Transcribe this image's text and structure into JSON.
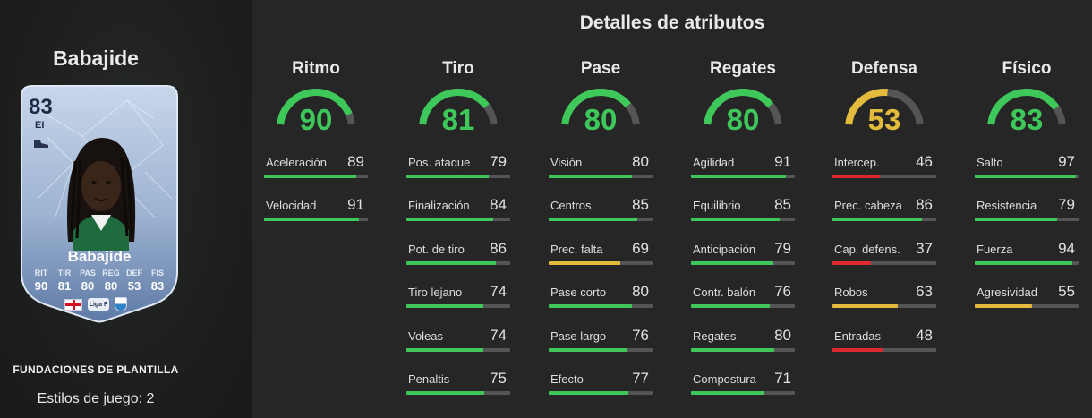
{
  "player": {
    "name": "Babajide",
    "card_name": "Babajide",
    "rating": "83",
    "position": "EI",
    "stat_labels": [
      "RIT",
      "TIR",
      "PAS",
      "REG",
      "DEF",
      "FÍS"
    ],
    "stat_values": [
      "90",
      "81",
      "80",
      "80",
      "53",
      "83"
    ],
    "league_logo_text": "Liga F",
    "icons": {
      "boot": "boot-icon",
      "flag": "england-flag-icon",
      "league": "liga-f-logo",
      "club": "club-crest-icon"
    }
  },
  "sidebar": {
    "foundations_label": "FUNDACIONES DE PLANTILLA",
    "playstyles_label": "Estilos de juego: 2"
  },
  "details": {
    "title": "Detalles de atributos"
  },
  "colors": {
    "high": "#3ec85a",
    "mid": "#e3bb3c",
    "low": "#e0282f",
    "track": "#555555"
  },
  "categories": [
    {
      "name": "Ritmo",
      "value": "90",
      "level": "high",
      "attributes": [
        {
          "label": "Aceleración",
          "value": "89",
          "level": "high"
        },
        {
          "label": "Velocidad",
          "value": "91",
          "level": "high"
        }
      ]
    },
    {
      "name": "Tiro",
      "value": "81",
      "level": "high",
      "attributes": [
        {
          "label": "Pos. ataque",
          "value": "79",
          "level": "high"
        },
        {
          "label": "Finalización",
          "value": "84",
          "level": "high"
        },
        {
          "label": "Pot. de tiro",
          "value": "86",
          "level": "high"
        },
        {
          "label": "Tiro lejano",
          "value": "74",
          "level": "high"
        },
        {
          "label": "Voleas",
          "value": "74",
          "level": "high"
        },
        {
          "label": "Penaltis",
          "value": "75",
          "level": "high"
        }
      ]
    },
    {
      "name": "Pase",
      "value": "80",
      "level": "high",
      "attributes": [
        {
          "label": "Visión",
          "value": "80",
          "level": "high"
        },
        {
          "label": "Centros",
          "value": "85",
          "level": "high"
        },
        {
          "label": "Prec. falta",
          "value": "69",
          "level": "mid"
        },
        {
          "label": "Pase corto",
          "value": "80",
          "level": "high"
        },
        {
          "label": "Pase largo",
          "value": "76",
          "level": "high"
        },
        {
          "label": "Efecto",
          "value": "77",
          "level": "high"
        }
      ]
    },
    {
      "name": "Regates",
      "value": "80",
      "level": "high",
      "attributes": [
        {
          "label": "Agilidad",
          "value": "91",
          "level": "high"
        },
        {
          "label": "Equilibrio",
          "value": "85",
          "level": "high"
        },
        {
          "label": "Anticipación",
          "value": "79",
          "level": "high"
        },
        {
          "label": "Contr. balón",
          "value": "76",
          "level": "high"
        },
        {
          "label": "Regates",
          "value": "80",
          "level": "high"
        },
        {
          "label": "Compostura",
          "value": "71",
          "level": "high"
        }
      ]
    },
    {
      "name": "Defensa",
      "value": "53",
      "level": "mid",
      "attributes": [
        {
          "label": "Intercep.",
          "value": "46",
          "level": "low"
        },
        {
          "label": "Prec. cabeza",
          "value": "86",
          "level": "high"
        },
        {
          "label": "Cap. defens.",
          "value": "37",
          "level": "low"
        },
        {
          "label": "Robos",
          "value": "63",
          "level": "mid"
        },
        {
          "label": "Entradas",
          "value": "48",
          "level": "low"
        }
      ]
    },
    {
      "name": "Físico",
      "value": "83",
      "level": "high",
      "attributes": [
        {
          "label": "Salto",
          "value": "97",
          "level": "high"
        },
        {
          "label": "Resistencia",
          "value": "79",
          "level": "high"
        },
        {
          "label": "Fuerza",
          "value": "94",
          "level": "high"
        },
        {
          "label": "Agresividad",
          "value": "55",
          "level": "mid"
        }
      ]
    }
  ]
}
